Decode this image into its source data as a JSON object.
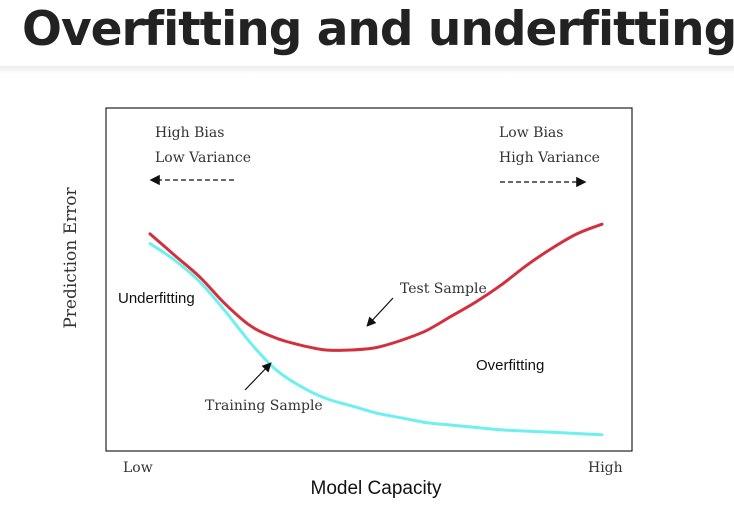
{
  "slide": {
    "title": "Overfitting and underfitting"
  },
  "chart_data": {
    "type": "line",
    "title": "",
    "xlabel": "Model Capacity",
    "ylabel": "Prediction Error",
    "x_tick_labels": [
      "Low",
      "High"
    ],
    "xlim": [
      0,
      1
    ],
    "ylim": [
      0,
      1
    ],
    "grid": false,
    "legend": "none",
    "series": [
      {
        "name": "Test Sample",
        "color": "#d2303d",
        "points": [
          [
            0.0,
            0.86
          ],
          [
            0.05,
            0.77
          ],
          [
            0.1,
            0.68
          ],
          [
            0.15,
            0.57
          ],
          [
            0.2,
            0.48
          ],
          [
            0.25,
            0.43
          ],
          [
            0.3,
            0.4
          ],
          [
            0.35,
            0.38
          ],
          [
            0.4,
            0.38
          ],
          [
            0.45,
            0.39
          ],
          [
            0.5,
            0.42
          ],
          [
            0.55,
            0.46
          ],
          [
            0.6,
            0.52
          ],
          [
            0.65,
            0.58
          ],
          [
            0.7,
            0.65
          ],
          [
            0.75,
            0.73
          ],
          [
            0.8,
            0.8
          ],
          [
            0.85,
            0.86
          ],
          [
            0.9,
            0.9
          ]
        ]
      },
      {
        "name": "Training Sample",
        "color": "#6ff0f0",
        "points": [
          [
            0.0,
            0.82
          ],
          [
            0.05,
            0.75
          ],
          [
            0.1,
            0.66
          ],
          [
            0.15,
            0.54
          ],
          [
            0.2,
            0.41
          ],
          [
            0.25,
            0.3
          ],
          [
            0.3,
            0.23
          ],
          [
            0.35,
            0.18
          ],
          [
            0.4,
            0.15
          ],
          [
            0.45,
            0.12
          ],
          [
            0.5,
            0.1
          ],
          [
            0.55,
            0.08
          ],
          [
            0.6,
            0.07
          ],
          [
            0.65,
            0.06
          ],
          [
            0.7,
            0.05
          ],
          [
            0.75,
            0.045
          ],
          [
            0.8,
            0.04
          ],
          [
            0.85,
            0.035
          ],
          [
            0.9,
            0.03
          ]
        ]
      }
    ],
    "annotations": {
      "left_bias_line1": "High Bias",
      "left_bias_line2": "Low Variance",
      "right_bias_line1": "Low Bias",
      "right_bias_line2": "High Variance",
      "underfitting": "Underfitting",
      "overfitting": "Overfitting"
    }
  }
}
